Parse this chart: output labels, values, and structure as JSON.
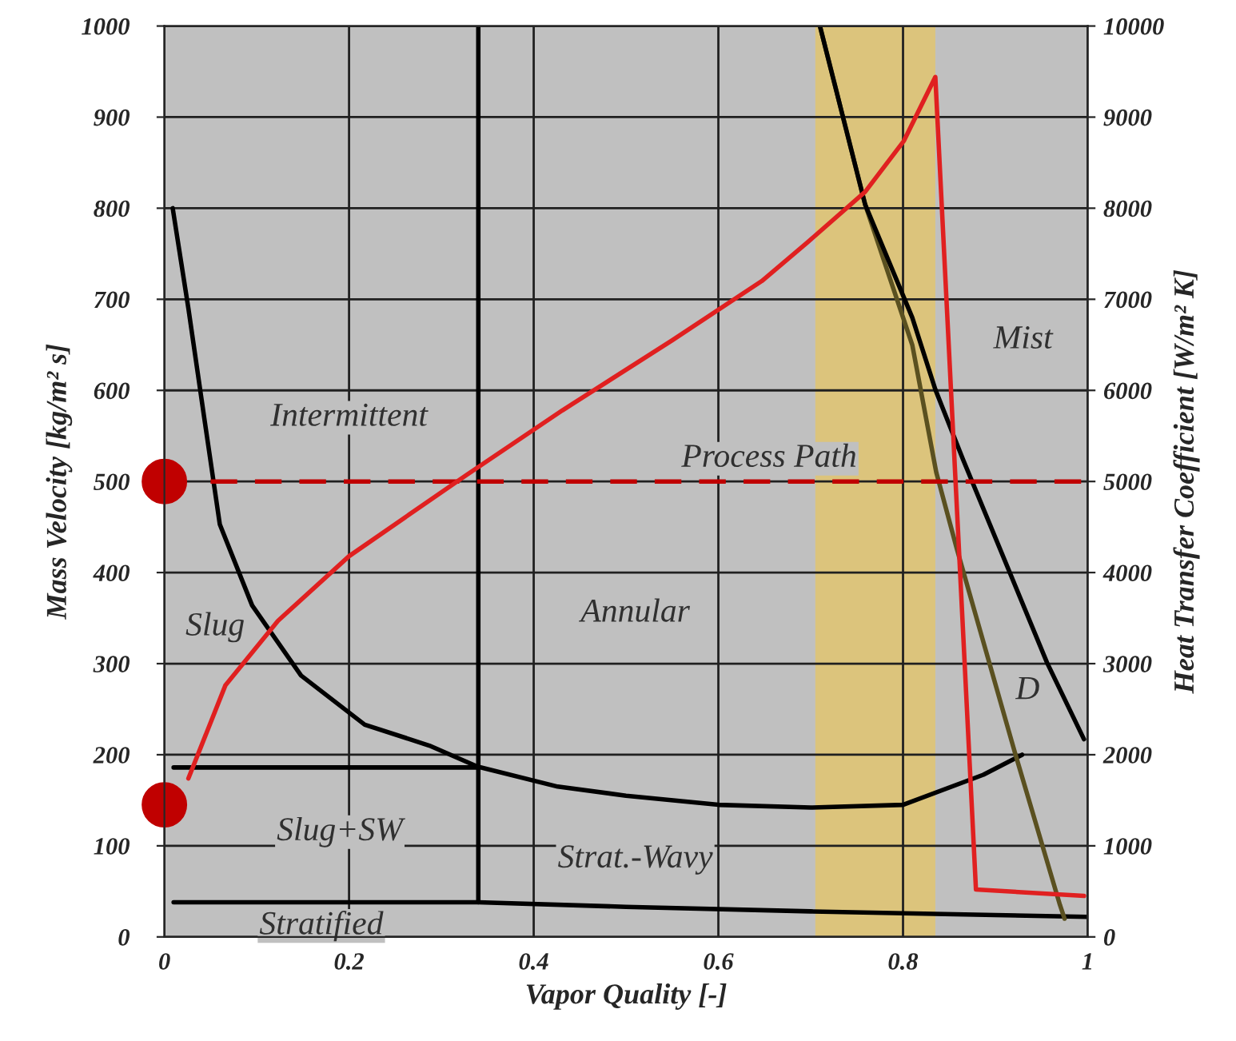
{
  "chart_data": {
    "type": "line",
    "xlabel": "Vapor Quality [-]",
    "ylabel": "Mass Velocity [kg/m² s]",
    "y2label": "Heat Transfer Coefficient [W/m² K]",
    "xlim": [
      0,
      1
    ],
    "xticks": [
      0,
      0.2,
      0.4,
      0.6,
      0.8,
      1
    ],
    "ylim": [
      0,
      1000
    ],
    "yticks": [
      0,
      100,
      200,
      300,
      400,
      500,
      600,
      700,
      800,
      900,
      1000
    ],
    "y2lim": [
      0,
      10000
    ],
    "y2ticks": [
      0,
      1000,
      2000,
      3000,
      4000,
      5000,
      6000,
      7000,
      8000,
      9000,
      10000
    ],
    "grid": true,
    "legend": false,
    "bands": [
      {
        "axis": "x",
        "from": 0.705,
        "to": 0.835,
        "color": "#dcc47c"
      }
    ],
    "series": [
      {
        "type": "line",
        "color": "#000000",
        "x": [
          0.01,
          0.34,
          0.5,
          0.7,
          0.9,
          1.0
        ],
        "values": [
          38,
          38,
          33,
          28,
          24,
          22
        ]
      },
      {
        "type": "line",
        "color": "#000000",
        "x": [
          0.01,
          0.34
        ],
        "values": [
          186,
          186
        ]
      },
      {
        "type": "line",
        "color": "#000000",
        "x": [
          0.34,
          0.34
        ],
        "values": [
          38,
          1000
        ]
      },
      {
        "type": "line",
        "color": "#000000",
        "x": [
          0.009,
          0.026,
          0.043,
          0.06,
          0.095,
          0.148,
          0.217,
          0.287,
          0.339,
          0.426,
          0.5,
          0.6,
          0.7,
          0.8,
          0.887,
          0.929
        ],
        "values": [
          800,
          690,
          571,
          453,
          364,
          287,
          233,
          210,
          187,
          165,
          155,
          145,
          142,
          145,
          178,
          200
        ]
      },
      {
        "type": "line",
        "color": "#5a5020",
        "x": [
          0.71,
          0.759,
          0.81,
          0.836,
          0.858,
          0.921,
          0.97,
          0.975
        ],
        "values": [
          1000,
          804,
          650,
          510,
          427,
          203,
          35,
          20
        ]
      },
      {
        "type": "line",
        "color": "#000000",
        "x": [
          0.71,
          0.759,
          0.81,
          0.835,
          0.865,
          0.956,
          0.996
        ],
        "values": [
          1000,
          804,
          680,
          601,
          524,
          301,
          217
        ]
      },
      {
        "color": "#c00000",
        "line_style": "dashed",
        "x": [
          0.05,
          1.0
        ],
        "values": [
          500,
          500
        ]
      },
      {
        "color": "#e02020",
        "axis": "y2",
        "x": [
          0.026,
          0.066,
          0.123,
          0.2,
          0.327,
          0.431,
          0.55,
          0.647,
          0.696,
          0.759,
          0.801,
          0.835,
          0.879,
          0.996
        ],
        "values": [
          1740,
          2760,
          3470,
          4180,
          5070,
          5780,
          6550,
          7200,
          7620,
          8180,
          8740,
          9440,
          520,
          450
        ]
      },
      {
        "type": "scatter",
        "color": "#c00000",
        "marker": "circle",
        "x": [
          0,
          0
        ],
        "values": [
          500,
          145
        ]
      }
    ],
    "annotations": [
      "Intermittent",
      "Slug",
      "Slug+SW",
      "Stratified",
      "Annular",
      "Strat.-Wavy",
      "Mist",
      "D",
      "Process Path"
    ]
  }
}
